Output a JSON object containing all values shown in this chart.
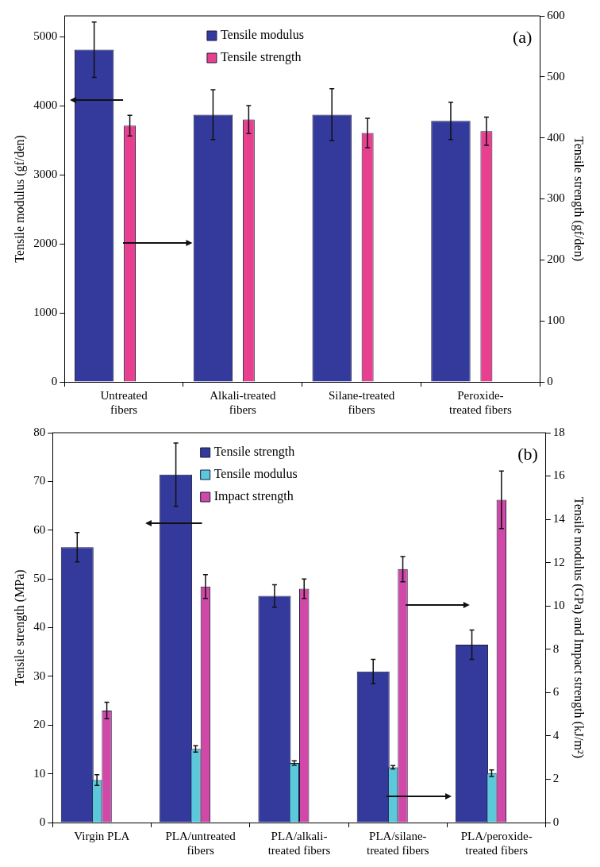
{
  "chart_data": [
    {
      "type": "bar",
      "categories": [
        "Untreated fibers",
        "Alkali-treated fibers",
        "Silane-treated fibers",
        "Peroxide-treated fibers"
      ],
      "ylabel": "Tensile modulus (gf/den)",
      "y2label": "Tensile strength (gf/den)",
      "ylim": [
        0,
        5300
      ],
      "yticks": [
        0,
        1000,
        2000,
        3000,
        4000,
        5000
      ],
      "y2lim": [
        0,
        600
      ],
      "y2ticks": [
        0,
        100,
        200,
        300,
        400,
        500,
        600
      ],
      "grid": false,
      "legend": "top",
      "annotations": [
        "(a)"
      ],
      "series": [
        {
          "name": "Tensile modulus",
          "color": "#333a9c",
          "values": [
            4810,
            3870,
            3870,
            3780
          ],
          "errors": [
            400,
            360,
            375,
            270
          ]
        },
        {
          "name": "Tensile strength",
          "color": "#e8408f",
          "axis": "y2",
          "values": [
            420,
            430,
            408,
            411
          ],
          "errors": [
            17,
            23,
            24,
            23
          ]
        }
      ]
    },
    {
      "type": "bar",
      "categories": [
        "Virgin PLA",
        "PLA/untreated fibers",
        "PLA/alkali-treated fibers",
        "PLA/silane-treated fibers",
        "PLA/peroxide-treated fibers"
      ],
      "ylabel": "Tensile strength (MPa)",
      "y2label": "Tensile modulus (GPa) and Impact strength (kJ/m²)",
      "ylim": [
        0,
        80
      ],
      "yticks": [
        0,
        10,
        20,
        30,
        40,
        50,
        60,
        70,
        80
      ],
      "y2lim": [
        0,
        18
      ],
      "y2ticks": [
        0,
        2,
        4,
        6,
        8,
        10,
        12,
        14,
        16,
        18
      ],
      "grid": false,
      "legend": "top",
      "annotations": [
        "(b)"
      ],
      "series": [
        {
          "name": "Tensile strength",
          "color": "#333a9c",
          "values": [
            56.5,
            71.4,
            46.5,
            31,
            36.5
          ],
          "errors": [
            3,
            6.5,
            2.3,
            2.5,
            3
          ]
        },
        {
          "name": "Tensile modulus",
          "color": "#5bc8dc",
          "axis": "y2",
          "values": [
            1.96,
            3.4,
            2.75,
            2.55,
            2.28
          ],
          "errors": [
            0.25,
            0.15,
            0.1,
            0.08,
            0.15
          ]
        },
        {
          "name": "Impact strength",
          "color": "#d048a8",
          "axis": "y2",
          "values": [
            5.17,
            10.9,
            10.8,
            11.7,
            14.9
          ],
          "errors": [
            0.38,
            0.55,
            0.45,
            0.58,
            1.33
          ]
        }
      ]
    }
  ]
}
